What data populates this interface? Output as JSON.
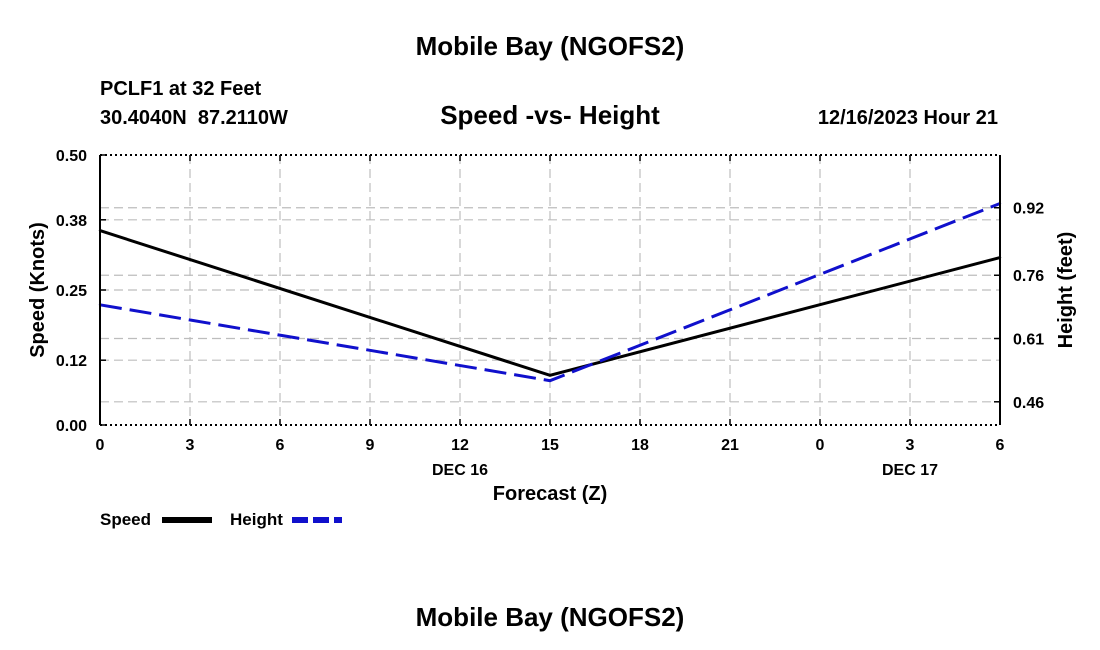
{
  "page_title": "Mobile Bay (NGOFS2)",
  "footer_title": "Mobile Bay (NGOFS2)",
  "station": {
    "name_line": "PCLF1 at 32 Feet",
    "coords_line": "30.4040N  87.2110W",
    "date_line": "12/16/2023 Hour 21"
  },
  "chart_data": {
    "type": "line",
    "title": "Speed -vs- Height",
    "xlabel": "Forecast (Z)",
    "ylabel": "Speed (Knots)",
    "y2label": "Height (feet)",
    "x_ticks": [
      "0",
      "3",
      "6",
      "9",
      "12",
      "15",
      "18",
      "21",
      "0",
      "3",
      "6"
    ],
    "x_range_hours": [
      0,
      30
    ],
    "date_labels": [
      {
        "text": "DEC 16",
        "tick_index": 4
      },
      {
        "text": "DEC 17",
        "tick_index": 9
      }
    ],
    "ylim": [
      0,
      0.5
    ],
    "y_ticks": [
      "0.00",
      "0.12",
      "0.25",
      "0.38",
      "0.50"
    ],
    "y2lim": [
      0.405,
      1.045
    ],
    "y2_ticks": [
      "0.46",
      "0.61",
      "0.76",
      "0.92"
    ],
    "series": [
      {
        "name": "Speed",
        "axis": "left",
        "color": "#000000",
        "dash": "solid",
        "points": [
          [
            0,
            0.36
          ],
          [
            15,
            0.092
          ],
          [
            30,
            0.31
          ]
        ]
      },
      {
        "name": "Height",
        "axis": "right",
        "color": "#1010cc",
        "dash": "dashed",
        "points": [
          [
            0,
            0.69
          ],
          [
            15,
            0.51
          ],
          [
            30,
            0.93
          ]
        ]
      }
    ],
    "legend": [
      {
        "label": "Speed",
        "color": "#000000"
      },
      {
        "label": "Height",
        "color": "#1010cc"
      }
    ]
  }
}
